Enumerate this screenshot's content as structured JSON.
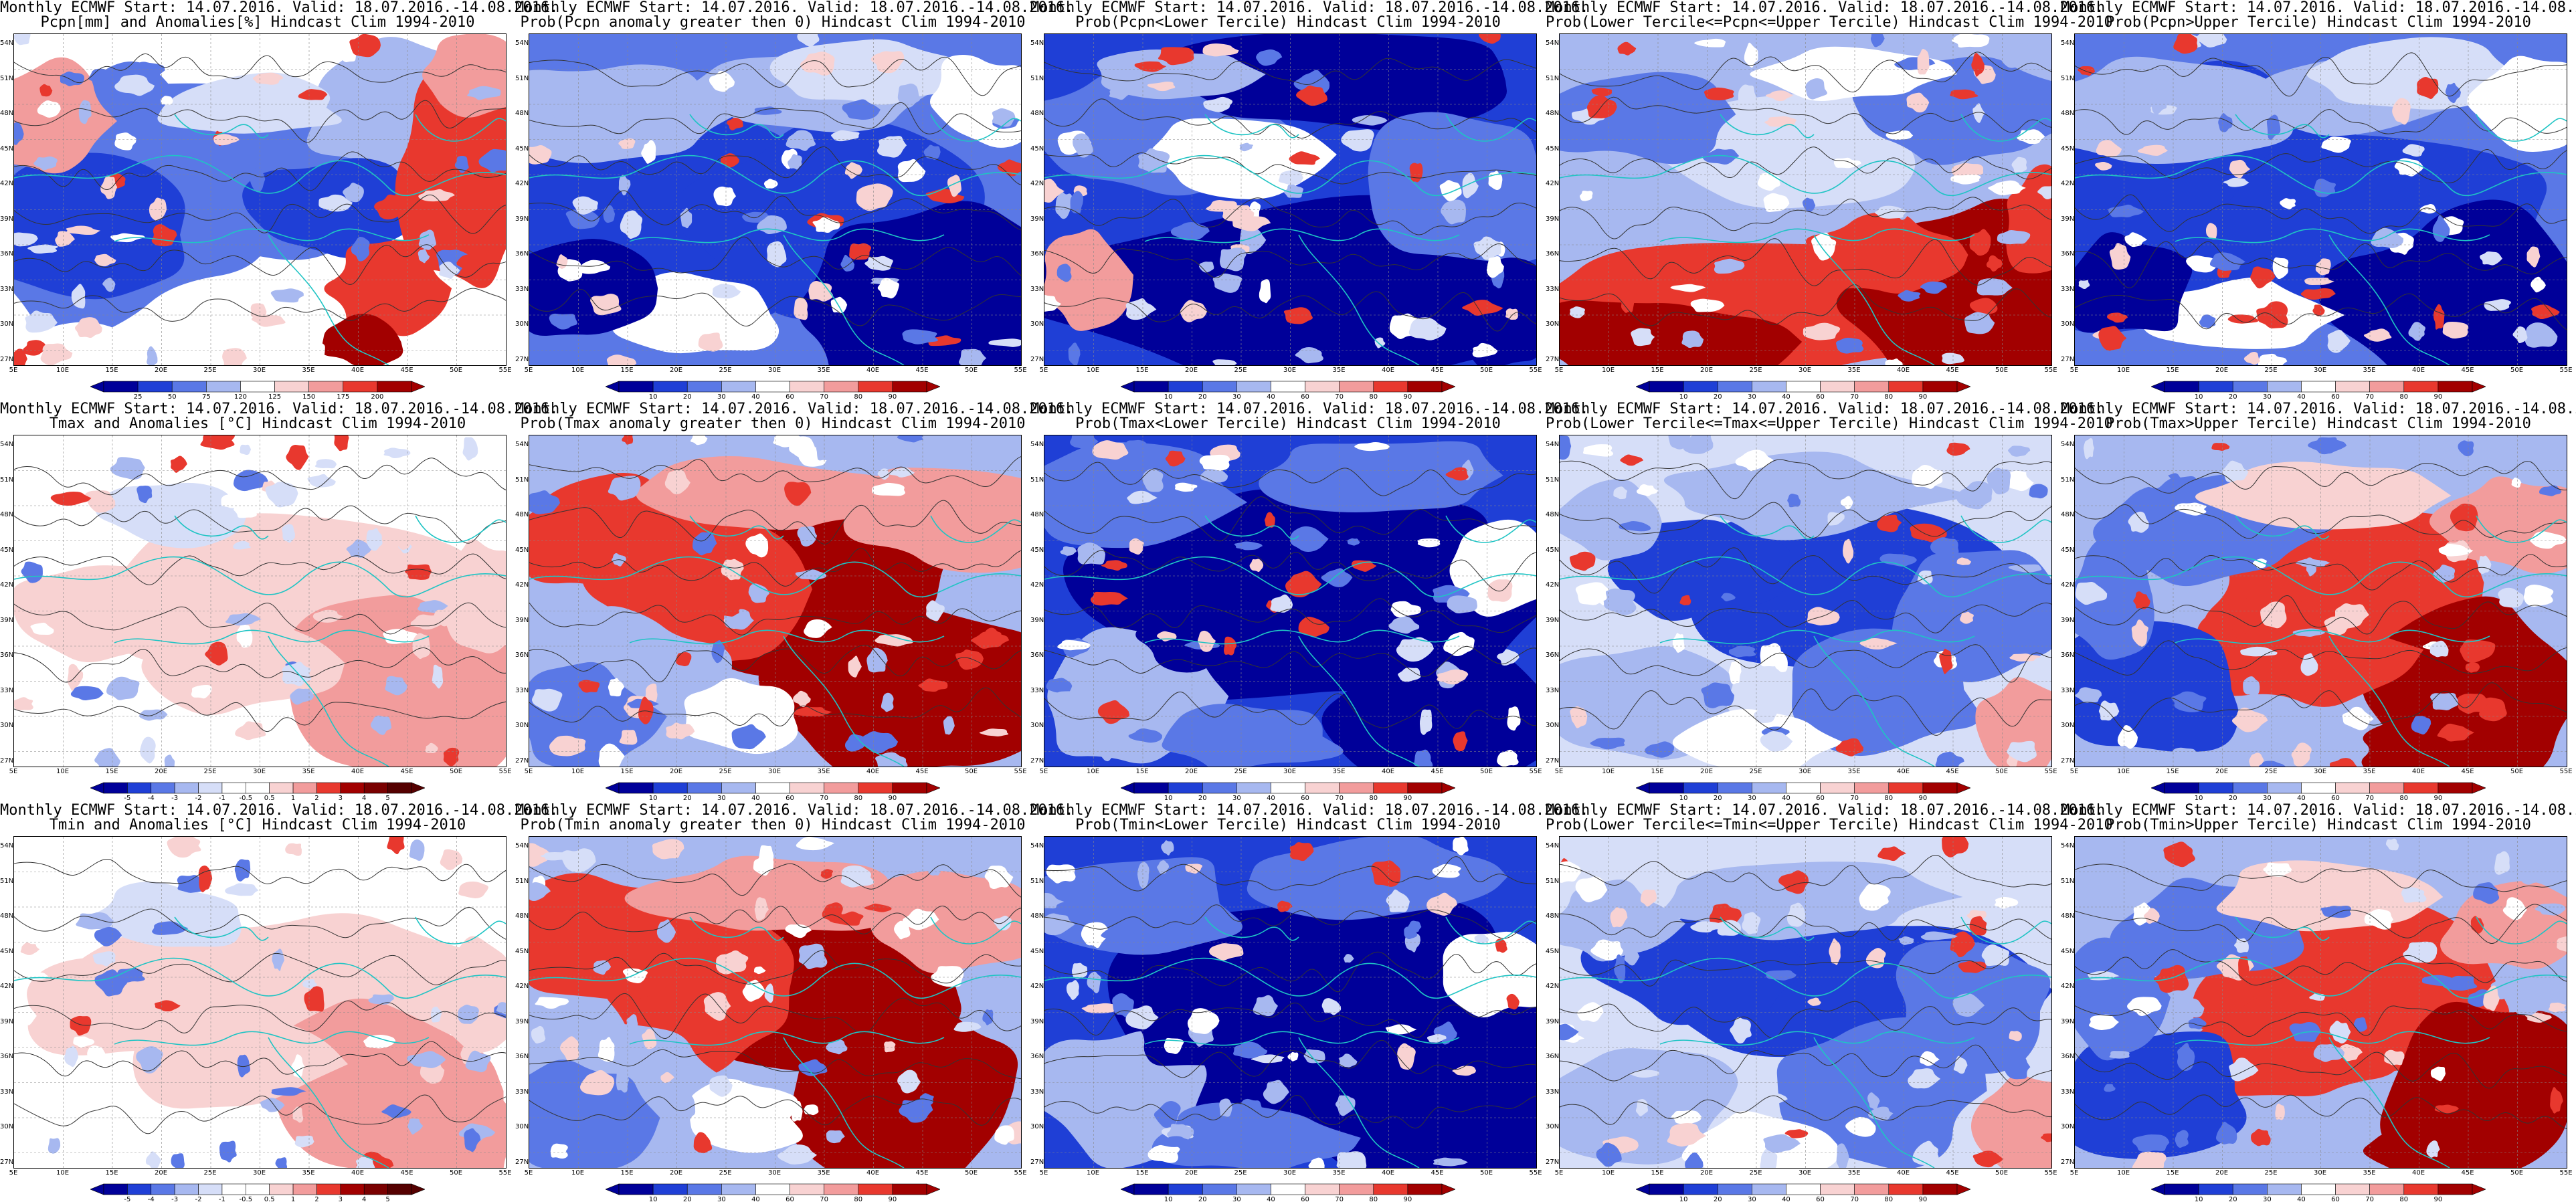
{
  "title_line1": "Monthly ECMWF Start: 14.07.2016. Valid: 18.07.2016.-14.08.2016.",
  "hindcast": "Hindcast Clim 1994-2010",
  "lat_labels": [
    "54N",
    "51N",
    "48N",
    "45N",
    "42N",
    "39N",
    "36N",
    "33N",
    "30N",
    "27N"
  ],
  "lon_labels": [
    "5E",
    "10E",
    "15E",
    "20E",
    "25E",
    "30E",
    "35E",
    "40E",
    "45E",
    "50E",
    "55E"
  ],
  "colors": {
    "dark_blue": "#000099",
    "blue": "#1f3fd6",
    "mid_blue": "#5a78e6",
    "light_blue": "#a7b8f0",
    "pale_blue": "#d6def8",
    "white": "#ffffff",
    "pale_red": "#f8d2d2",
    "light_red": "#f29c9c",
    "red": "#e8382e",
    "dark_red": "#a20000",
    "contour": "#333333",
    "coast": "#1fc4c4"
  },
  "scales": {
    "pcpn_anom": [
      "25",
      "50",
      "75",
      "120",
      "125",
      "150",
      "175",
      "200"
    ],
    "prob": [
      "10",
      "20",
      "30",
      "40",
      "60",
      "70",
      "80",
      "90"
    ],
    "temp_anom": [
      "-5",
      "-4",
      "-3",
      "-2",
      "-1",
      "-0.5",
      "0.5",
      "1",
      "2",
      "3",
      "4",
      "5"
    ]
  },
  "panels": [
    {
      "id": "pcpn-anom",
      "title2": "Pcpn[mm] and Anomalies[%]",
      "scale": "pcpn_anom",
      "pattern": "pcpn-anom"
    },
    {
      "id": "pcpn-prob-pos",
      "title2": "Prob(Pcpn anomaly greater then 0)",
      "scale": "prob",
      "pattern": "mostly-blue"
    },
    {
      "id": "pcpn-prob-lower",
      "title2": "Prob(Pcpn<Lower Tercile)",
      "scale": "prob",
      "pattern": "deep-blue-south"
    },
    {
      "id": "pcpn-prob-middle",
      "title2": "Prob(Lower Tercile<=Pcpn<=Upper Tercile)",
      "scale": "prob",
      "pattern": "red-south"
    },
    {
      "id": "pcpn-prob-upper",
      "title2": "Prob(Pcpn>Upper Tercile)",
      "scale": "prob",
      "pattern": "mostly-blue"
    },
    {
      "id": "tmax-anom",
      "title2": "Tmax and Anomalies [°C]",
      "scale": "temp_anom",
      "pattern": "light-red"
    },
    {
      "id": "tmax-prob-pos",
      "title2": "Prob(Tmax anomaly greater then 0)",
      "scale": "prob",
      "pattern": "red-east"
    },
    {
      "id": "tmax-prob-lower",
      "title2": "Prob(Tmax<Lower Tercile)",
      "scale": "prob",
      "pattern": "deep-blue"
    },
    {
      "id": "tmax-prob-middle",
      "title2": "Prob(Lower Tercile<=Tmax<=Upper Tercile)",
      "scale": "prob",
      "pattern": "blue-mixed"
    },
    {
      "id": "tmax-prob-upper",
      "title2": "Prob(Tmax>Upper Tercile)",
      "scale": "prob",
      "pattern": "red-center"
    },
    {
      "id": "tmin-anom",
      "title2": "Tmin and Anomalies [°C]",
      "scale": "temp_anom",
      "pattern": "light-red"
    },
    {
      "id": "tmin-prob-pos",
      "title2": "Prob(Tmin anomaly greater then 0)",
      "scale": "prob",
      "pattern": "red-east"
    },
    {
      "id": "tmin-prob-lower",
      "title2": "Prob(Tmin<Lower Tercile)",
      "scale": "prob",
      "pattern": "deep-blue"
    },
    {
      "id": "tmin-prob-middle",
      "title2": "Prob(Lower Tercile<=Tmin<=Upper Tercile)",
      "scale": "prob",
      "pattern": "blue-mixed"
    },
    {
      "id": "tmin-prob-upper",
      "title2": "Prob(Tmin>Upper Tercile)",
      "scale": "prob",
      "pattern": "red-center"
    }
  ]
}
